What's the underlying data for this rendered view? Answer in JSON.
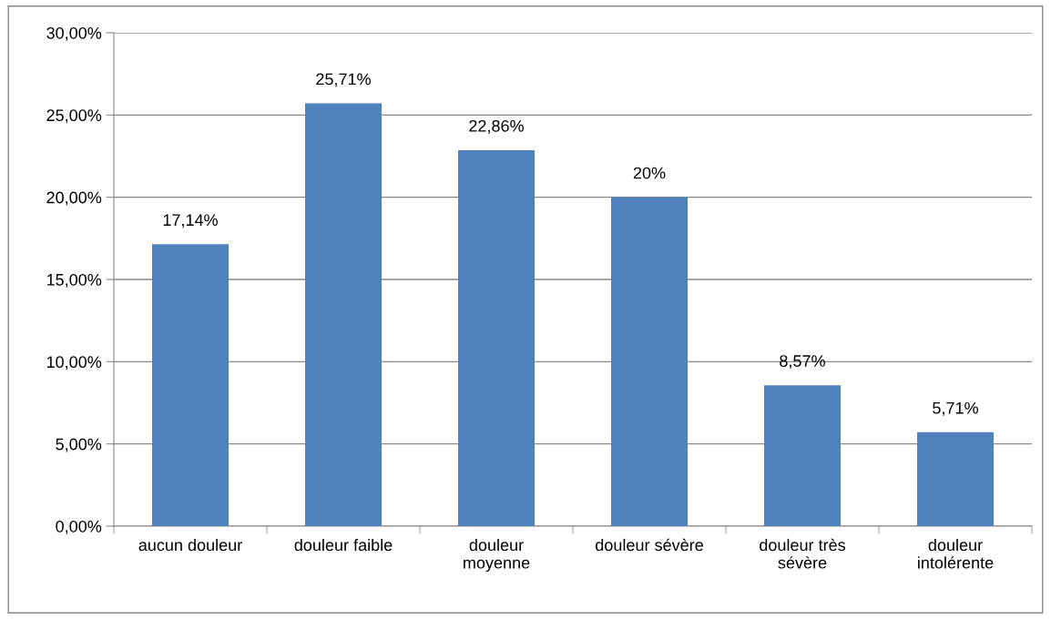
{
  "chart_data": {
    "type": "bar",
    "categories": [
      "aucun douleur",
      "douleur faible",
      "douleur moyenne",
      "douleur sévère",
      "douleur très sévère",
      "douleur intolérente"
    ],
    "values": [
      17.14,
      25.71,
      22.86,
      20,
      8.57,
      5.71
    ],
    "value_labels": [
      "17,14%",
      "25,71%",
      "22,86%",
      "20%",
      "8,57%",
      "5,71%"
    ],
    "color": "#4f81bd",
    "ylim": [
      0,
      30
    ],
    "yticks": [
      {
        "value": 0,
        "label": "0,00%"
      },
      {
        "value": 5,
        "label": "5,00%"
      },
      {
        "value": 10,
        "label": "10,00%"
      },
      {
        "value": 15,
        "label": "15,00%"
      },
      {
        "value": 20,
        "label": "20,00%"
      },
      {
        "value": 25,
        "label": "25,00%"
      },
      {
        "value": 30,
        "label": "30,00%"
      }
    ],
    "grid": "y",
    "legend": false
  }
}
